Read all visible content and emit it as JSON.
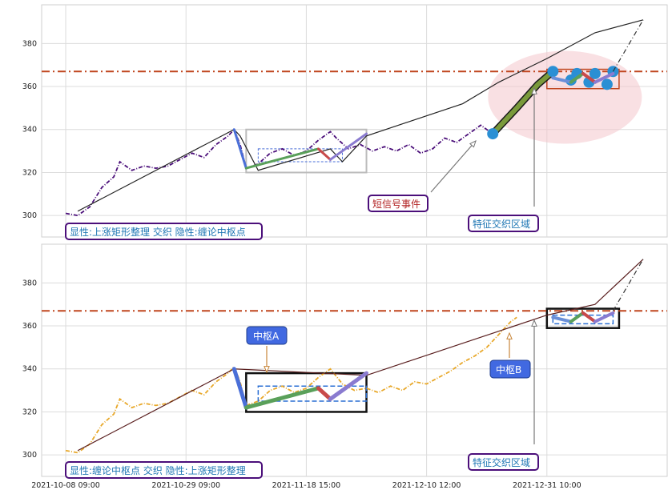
{
  "chart_data": [
    {
      "type": "line",
      "panel": "top",
      "ylim": [
        290,
        398
      ],
      "yticks": [
        300,
        320,
        340,
        360,
        380
      ],
      "ytick_labels": [
        "300",
        "320",
        "340",
        "360",
        "380"
      ],
      "hline": {
        "y": 367,
        "color": "#c0461f",
        "style": "dash-dot"
      },
      "series": [
        {
          "kind": "price",
          "color": "#4b0f7a",
          "style": "dash-dot",
          "values": [
            [
              0,
              301
            ],
            [
              4,
              300
            ],
            [
              8,
              304
            ],
            [
              12,
              313
            ],
            [
              16,
              318
            ],
            [
              18,
              325
            ],
            [
              22,
              321
            ],
            [
              26,
              323
            ],
            [
              30,
              322
            ],
            [
              34,
              323
            ],
            [
              38,
              326
            ],
            [
              42,
              329
            ],
            [
              46,
              327
            ],
            [
              50,
              333
            ],
            [
              54,
              337
            ],
            [
              56,
              340
            ],
            [
              58,
              333
            ],
            [
              60,
              322
            ],
            [
              64,
              324
            ],
            [
              68,
              329
            ],
            [
              72,
              331
            ],
            [
              76,
              328
            ],
            [
              80,
              330
            ],
            [
              84,
              335
            ],
            [
              88,
              339
            ],
            [
              90,
              336
            ],
            [
              94,
              331
            ],
            [
              98,
              333
            ],
            [
              102,
              330
            ],
            [
              106,
              332
            ],
            [
              110,
              330
            ],
            [
              114,
              333
            ],
            [
              118,
              329
            ],
            [
              122,
              331
            ],
            [
              126,
              336
            ],
            [
              130,
              334
            ],
            [
              134,
              338
            ],
            [
              138,
              342
            ],
            [
              142,
              338
            ]
          ]
        },
        {
          "kind": "trend",
          "color": "#222222",
          "style": "solid",
          "values": [
            [
              4,
              302
            ],
            [
              56,
              340
            ],
            [
              58,
              337
            ],
            [
              64,
              321
            ],
            [
              88,
              331
            ],
            [
              92,
              325
            ],
            [
              100,
              337
            ],
            [
              132,
              352
            ],
            [
              144,
              362
            ],
            [
              160,
              373
            ],
            [
              176,
              385
            ],
            [
              192,
              391
            ]
          ]
        },
        {
          "kind": "short_signal_segment",
          "color": "#7a9a3b",
          "style": "solid",
          "values": [
            [
              142,
              338
            ],
            [
              150,
              350
            ],
            [
              157,
              361
            ],
            [
              162,
              367
            ]
          ]
        },
        {
          "kind": "short_signal_points",
          "color": "#2a8fd4",
          "style": "markers",
          "values": [
            [
              142,
              338
            ],
            [
              162,
              367
            ],
            [
              168,
              363
            ],
            [
              170,
              366
            ],
            [
              174,
              362
            ],
            [
              176,
              366
            ],
            [
              180,
              361
            ],
            [
              182,
              367
            ]
          ]
        }
      ],
      "annotations": [
        {
          "text": "显性:上涨矩形整理 交织 隐性:缠论中枢点",
          "color": "#1f77b4"
        },
        {
          "text": "短信号事件",
          "color": "#b22222"
        },
        {
          "text": "特征交织区域",
          "color": "#1f77b4"
        }
      ]
    },
    {
      "type": "line",
      "panel": "bottom",
      "ylim": [
        290,
        398
      ],
      "yticks": [
        300,
        320,
        340,
        360,
        380
      ],
      "ytick_labels": [
        "300",
        "320",
        "340",
        "360",
        "380"
      ],
      "hline": {
        "y": 367,
        "color": "#c0461f",
        "style": "dash-dot"
      },
      "series": [
        {
          "kind": "price",
          "color": "#e8a82a",
          "style": "dash-dot",
          "values": [
            [
              0,
              302
            ],
            [
              4,
              301
            ],
            [
              8,
              305
            ],
            [
              12,
              314
            ],
            [
              16,
              319
            ],
            [
              18,
              326
            ],
            [
              22,
              322
            ],
            [
              26,
              324
            ],
            [
              30,
              323
            ],
            [
              34,
              324
            ],
            [
              38,
              327
            ],
            [
              42,
              330
            ],
            [
              46,
              328
            ],
            [
              50,
              334
            ],
            [
              54,
              338
            ],
            [
              56,
              341
            ],
            [
              58,
              334
            ],
            [
              60,
              323
            ],
            [
              64,
              325
            ],
            [
              68,
              330
            ],
            [
              72,
              332
            ],
            [
              76,
              329
            ],
            [
              80,
              331
            ],
            [
              84,
              336
            ],
            [
              88,
              340
            ],
            [
              92,
              333
            ],
            [
              96,
              330
            ],
            [
              100,
              331
            ],
            [
              104,
              329
            ],
            [
              108,
              332
            ],
            [
              112,
              330
            ],
            [
              116,
              334
            ],
            [
              120,
              333
            ],
            [
              124,
              336
            ],
            [
              128,
              339
            ],
            [
              132,
              343
            ],
            [
              136,
              346
            ],
            [
              140,
              350
            ],
            [
              144,
              356
            ],
            [
              148,
              362
            ],
            [
              150,
              364
            ]
          ]
        },
        {
          "kind": "trend",
          "color": "#5a1f1f",
          "style": "solid",
          "values": [
            [
              4,
              302
            ],
            [
              56,
              340
            ],
            [
              100,
              337
            ],
            [
              160,
              365
            ],
            [
              176,
              370
            ],
            [
              192,
              391
            ]
          ]
        }
      ],
      "annotations": [
        {
          "text": "中枢A",
          "color": "#ffffff"
        },
        {
          "text": "中枢B",
          "color": "#ffffff"
        },
        {
          "text": "显性:缠论中枢点 交织 隐性:上涨矩形整理",
          "color": "#1f77b4"
        },
        {
          "text": "特征交织区域",
          "color": "#1f77b4"
        }
      ]
    }
  ],
  "x_axis": {
    "range": [
      -8,
      200
    ],
    "ticks": [
      {
        "x": 0,
        "label": "2021-10-08 09:00"
      },
      {
        "x": 40,
        "label": "2021-10-29 09:00"
      },
      {
        "x": 80,
        "label": "2021-11-18 15:00"
      },
      {
        "x": 120,
        "label": "2021-12-10 12:00"
      },
      {
        "x": 160,
        "label": "2021-12-31 10:00"
      }
    ]
  }
}
